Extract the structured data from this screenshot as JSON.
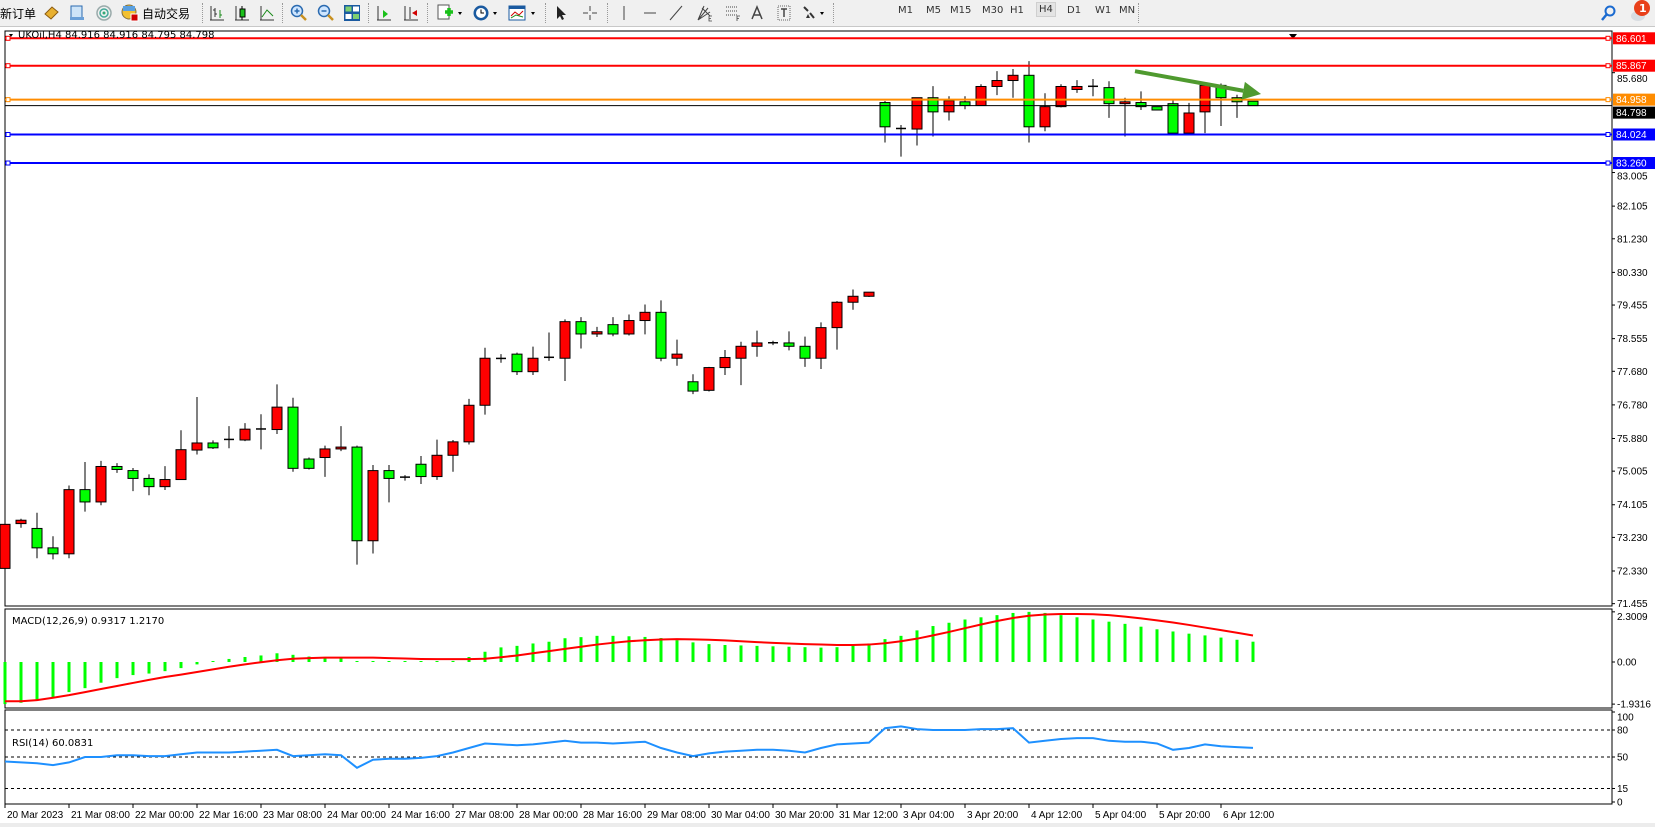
{
  "toolbar": {
    "new_order": "新订单",
    "auto_trading": "自动交易",
    "timeframes": [
      "M1",
      "M5",
      "M15",
      "M30",
      "H1",
      "H4",
      "D1",
      "W1",
      "MN"
    ],
    "active_timeframe": "H4",
    "notification_count": "1",
    "icons": [
      "new-order",
      "market-watch",
      "data-window",
      "navigator-signal",
      "auto-trading",
      "bar-chart",
      "candlestick-chart",
      "line-chart",
      "zoom-in",
      "zoom-out",
      "tile-windows",
      "auto-scroll",
      "chart-shift",
      "new-chart",
      "clock",
      "templates",
      "cursor",
      "crosshair",
      "vertical-line",
      "horizontal-line",
      "trendline",
      "fibonacci-fan",
      "fibonacci-retracement",
      "text",
      "text-label",
      "arrows",
      "search",
      "notifications"
    ]
  },
  "chart": {
    "title": "UKOil,H4  84.916 84.916 84.795 84.798"
  },
  "chart_data": {
    "type": "candlestick",
    "symbol": "UKOil",
    "timeframe": "H4",
    "ohlc_header": {
      "open": 84.916,
      "high": 84.916,
      "low": 84.795,
      "close": 84.798
    },
    "current_price": 84.798,
    "colors": {
      "bull": "#ff0000",
      "bear": "#00ff00",
      "outline": "#000000",
      "arrow": "#4f9a2f"
    },
    "y_range": [
      71.455,
      86.7
    ],
    "price_ticks": [
      "85.680",
      "83.005",
      "82.105",
      "81.230",
      "80.330",
      "79.455",
      "78.555",
      "77.680",
      "76.780",
      "75.880",
      "75.005",
      "74.105",
      "73.230",
      "72.330",
      "71.455"
    ],
    "current_price_label": "84.798",
    "hlines": [
      {
        "price": 86.601,
        "label": "86.601",
        "color": "#ff0000"
      },
      {
        "price": 85.867,
        "label": "85.867",
        "color": "#ff0000"
      },
      {
        "price": 84.958,
        "label": "84.958",
        "color": "#ff8c00"
      },
      {
        "price": 84.024,
        "label": "84.024",
        "color": "#0000ff"
      },
      {
        "price": 83.26,
        "label": "83.260",
        "color": "#0000ff"
      }
    ],
    "time_labels": [
      "20 Mar 2023",
      "21 Mar 08:00",
      "22 Mar 00:00",
      "22 Mar 16:00",
      "23 Mar 08:00",
      "24 Mar 00:00",
      "24 Mar 16:00",
      "27 Mar 08:00",
      "28 Mar 00:00",
      "28 Mar 16:00",
      "29 Mar 08:00",
      "30 Mar 04:00",
      "30 Mar 20:00",
      "31 Mar 12:00",
      "3 Apr 04:00",
      "3 Apr 20:00",
      "4 Apr 12:00",
      "5 Apr 04:00",
      "5 Apr 20:00",
      "6 Apr 12:00"
    ],
    "candles": [
      [
        72.4,
        73.72,
        71.73,
        73.58
      ],
      [
        73.6,
        73.73,
        73.49,
        73.69
      ],
      [
        73.47,
        73.89,
        72.67,
        72.95
      ],
      [
        72.95,
        73.26,
        72.64,
        72.79
      ],
      [
        72.79,
        74.62,
        72.67,
        74.51
      ],
      [
        74.51,
        75.25,
        73.92,
        74.18
      ],
      [
        74.18,
        75.28,
        74.09,
        75.13
      ],
      [
        75.13,
        75.22,
        74.96,
        75.05
      ],
      [
        75.02,
        75.09,
        74.47,
        74.81
      ],
      [
        74.81,
        74.92,
        74.36,
        74.59
      ],
      [
        74.59,
        75.14,
        74.5,
        74.78
      ],
      [
        74.78,
        76.1,
        74.78,
        75.58
      ],
      [
        75.57,
        76.99,
        75.45,
        75.76
      ],
      [
        75.76,
        75.83,
        75.6,
        75.63
      ],
      [
        75.85,
        76.21,
        75.62,
        75.86
      ],
      [
        75.84,
        76.29,
        75.81,
        76.13
      ],
      [
        76.13,
        76.53,
        75.59,
        76.14
      ],
      [
        76.12,
        77.33,
        76.0,
        76.72
      ],
      [
        76.72,
        76.97,
        74.99,
        75.08
      ],
      [
        75.33,
        75.37,
        75.05,
        75.08
      ],
      [
        75.37,
        75.69,
        74.85,
        75.6
      ],
      [
        75.6,
        76.21,
        75.54,
        75.65
      ],
      [
        75.65,
        75.69,
        72.5,
        73.14
      ],
      [
        73.14,
        75.17,
        72.8,
        75.02
      ],
      [
        75.02,
        75.17,
        74.17,
        74.81
      ],
      [
        74.84,
        74.9,
        74.75,
        74.85
      ],
      [
        75.19,
        75.41,
        74.66,
        74.86
      ],
      [
        74.86,
        75.85,
        74.77,
        75.43
      ],
      [
        75.43,
        75.84,
        74.99,
        75.79
      ],
      [
        75.79,
        76.94,
        75.72,
        76.77
      ],
      [
        76.77,
        78.31,
        76.52,
        78.03
      ],
      [
        78.02,
        78.14,
        77.91,
        78.03
      ],
      [
        78.14,
        78.18,
        77.58,
        77.67
      ],
      [
        77.67,
        78.34,
        77.58,
        78.03
      ],
      [
        78.05,
        78.72,
        77.96,
        78.06
      ],
      [
        78.03,
        79.07,
        77.42,
        79.01
      ],
      [
        79.01,
        79.13,
        78.29,
        78.68
      ],
      [
        78.68,
        78.87,
        78.6,
        78.74
      ],
      [
        78.93,
        79.13,
        78.62,
        78.68
      ],
      [
        78.68,
        79.2,
        78.64,
        79.04
      ],
      [
        79.04,
        79.47,
        78.67,
        79.26
      ],
      [
        79.26,
        79.58,
        77.95,
        78.03
      ],
      [
        78.03,
        78.53,
        77.83,
        78.14
      ],
      [
        77.4,
        77.6,
        77.07,
        77.15
      ],
      [
        77.17,
        77.8,
        77.14,
        77.78
      ],
      [
        77.78,
        78.25,
        77.58,
        78.05
      ],
      [
        78.03,
        78.47,
        77.31,
        78.35
      ],
      [
        78.35,
        78.77,
        78.07,
        78.44
      ],
      [
        78.44,
        78.5,
        78.38,
        78.45
      ],
      [
        78.44,
        78.75,
        78.24,
        78.35
      ],
      [
        78.35,
        78.61,
        77.8,
        78.03
      ],
      [
        78.03,
        78.99,
        77.74,
        78.85
      ],
      [
        78.85,
        79.56,
        78.26,
        79.53
      ],
      [
        79.53,
        79.87,
        79.33,
        79.69
      ],
      [
        79.69,
        79.8,
        79.67,
        79.8
      ],
      [
        84.88,
        84.92,
        83.81,
        84.23
      ],
      [
        84.18,
        84.28,
        83.43,
        84.19
      ],
      [
        84.17,
        85.01,
        83.73,
        85.01
      ],
      [
        85.01,
        85.32,
        83.97,
        84.63
      ],
      [
        84.63,
        85.05,
        84.4,
        84.93
      ],
      [
        84.9,
        85.05,
        84.7,
        84.8
      ],
      [
        84.8,
        85.37,
        84.8,
        85.31
      ],
      [
        85.31,
        85.72,
        85.08,
        85.47
      ],
      [
        85.47,
        85.78,
        85.01,
        85.61
      ],
      [
        85.61,
        85.99,
        83.81,
        84.23
      ],
      [
        84.23,
        85.13,
        84.11,
        84.77
      ],
      [
        84.77,
        85.37,
        84.75,
        85.31
      ],
      [
        85.23,
        85.48,
        85.14,
        85.31
      ],
      [
        85.31,
        85.51,
        85.05,
        85.32
      ],
      [
        85.28,
        85.45,
        84.47,
        84.85
      ],
      [
        84.85,
        85.01,
        83.97,
        84.9
      ],
      [
        84.88,
        85.18,
        84.68,
        84.77
      ],
      [
        84.77,
        84.77,
        84.68,
        84.68
      ],
      [
        84.85,
        84.96,
        84.06,
        84.06
      ],
      [
        84.06,
        84.87,
        84.06,
        84.6
      ],
      [
        84.63,
        85.37,
        84.06,
        85.34
      ],
      [
        85.34,
        85.39,
        84.25,
        85.01
      ],
      [
        85.01,
        85.09,
        84.47,
        84.9
      ],
      [
        84.916,
        84.916,
        84.795,
        84.798
      ]
    ],
    "trend_arrow": {
      "from": {
        "bar": 71,
        "price": 85.72
      },
      "to": {
        "bar": 78,
        "price": 85.11
      },
      "color": "#4f9a2f"
    },
    "macd": {
      "label": "MACD(12,26,9) 0.9317 1.2170",
      "main_value": 0.9317,
      "signal_value": 1.217,
      "range": [
        -1.9316,
        2.3009
      ],
      "ticks": [
        "2.3009",
        "0.00",
        "-1.9316"
      ],
      "hist_color": "#00ff00",
      "signal_color": "#ff0000",
      "histogram": [
        -1.93,
        -1.87,
        -1.76,
        -1.64,
        -1.38,
        -1.2,
        -0.95,
        -0.74,
        -0.6,
        -0.53,
        -0.42,
        -0.28,
        -0.11,
        -0.04,
        0.14,
        0.23,
        0.3,
        0.4,
        0.33,
        0.25,
        0.23,
        0.16,
        0.04,
        0.02,
        -0.02,
        -0.02,
        -0.01,
        0.03,
        0.05,
        0.23,
        0.47,
        0.67,
        0.74,
        0.85,
        0.93,
        1.09,
        1.14,
        1.2,
        1.2,
        1.18,
        1.15,
        1.1,
        1.0,
        0.9,
        0.82,
        0.78,
        0.76,
        0.74,
        0.72,
        0.7,
        0.68,
        0.66,
        0.68,
        0.75,
        0.85,
        1.05,
        1.2,
        1.45,
        1.65,
        1.8,
        1.95,
        2.05,
        2.15,
        2.25,
        2.3,
        2.25,
        2.15,
        2.05,
        1.95,
        1.85,
        1.75,
        1.62,
        1.5,
        1.4,
        1.3,
        1.22,
        1.12,
        1.02,
        0.9317
      ],
      "signal": [
        -1.8,
        -1.8,
        -1.75,
        -1.64,
        -1.52,
        -1.38,
        -1.24,
        -1.1,
        -0.96,
        -0.82,
        -0.69,
        -0.58,
        -0.46,
        -0.34,
        -0.22,
        -0.11,
        -0.01,
        0.08,
        0.15,
        0.18,
        0.2,
        0.2,
        0.2,
        0.2,
        0.18,
        0.16,
        0.14,
        0.13,
        0.13,
        0.13,
        0.15,
        0.22,
        0.3,
        0.4,
        0.5,
        0.6,
        0.7,
        0.8,
        0.88,
        0.95,
        1.0,
        1.03,
        1.05,
        1.04,
        1.02,
        0.99,
        0.95,
        0.91,
        0.88,
        0.85,
        0.82,
        0.8,
        0.78,
        0.78,
        0.8,
        0.86,
        0.95,
        1.07,
        1.22,
        1.38,
        1.55,
        1.72,
        1.88,
        2.02,
        2.12,
        2.18,
        2.2,
        2.2,
        2.19,
        2.15,
        2.08,
        2.0,
        1.91,
        1.81,
        1.7,
        1.58,
        1.46,
        1.34,
        1.217
      ]
    },
    "rsi": {
      "label": "RSI(14) 60.0831",
      "value": 60.0831,
      "range": [
        0,
        100
      ],
      "levels": [
        80,
        50,
        15
      ],
      "ticks": [
        "100",
        "80",
        "50",
        "15",
        "0"
      ],
      "color": "#1e90ff",
      "values": [
        45,
        44,
        43,
        41,
        44,
        50,
        50,
        52,
        52,
        51,
        51,
        53,
        55,
        55,
        55,
        56,
        57,
        58,
        51,
        52,
        53,
        52,
        38,
        47,
        48,
        48,
        49,
        51,
        55,
        60,
        65,
        64,
        63,
        64,
        66,
        68,
        66,
        66,
        65,
        66,
        67,
        60,
        55,
        51,
        54,
        56,
        57,
        58,
        58,
        57,
        55,
        60,
        64,
        65,
        66,
        82,
        84,
        81,
        80,
        80,
        80,
        81,
        81,
        82,
        66,
        68,
        70,
        71,
        71,
        68,
        67,
        67,
        65,
        58,
        60,
        64,
        62,
        61,
        60.0831
      ]
    }
  }
}
